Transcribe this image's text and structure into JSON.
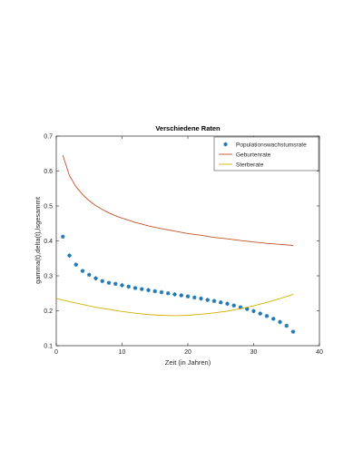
{
  "chart_data": {
    "type": "line",
    "title": "Verschiedene Raten",
    "xlabel": "Zeit (in Jahren)",
    "ylabel": "gamma(t),delta(t),lsgesammt",
    "xlim": [
      0,
      40
    ],
    "ylim": [
      0.1,
      0.7
    ],
    "xticks": [
      "0",
      "10",
      "20",
      "30",
      "40"
    ],
    "yticks": [
      "0.1",
      "0.2",
      "0.3",
      "0.4",
      "0.5",
      "0.6",
      "0.7"
    ],
    "grid": false,
    "legend_position": "top-right",
    "series": [
      {
        "name": "Populationswachstumsrate",
        "style": "markers",
        "marker": "asterisk",
        "color": "#1f77b4",
        "x": [
          1,
          2,
          3,
          4,
          5,
          6,
          7,
          8,
          9,
          10,
          11,
          12,
          13,
          14,
          15,
          16,
          17,
          18,
          19,
          20,
          21,
          22,
          23,
          24,
          25,
          26,
          27,
          28,
          29,
          30,
          31,
          32,
          33,
          34,
          35,
          36
        ],
        "y": [
          0.412,
          0.358,
          0.332,
          0.314,
          0.303,
          0.293,
          0.285,
          0.28,
          0.277,
          0.273,
          0.269,
          0.265,
          0.262,
          0.259,
          0.256,
          0.253,
          0.25,
          0.247,
          0.244,
          0.241,
          0.238,
          0.235,
          0.231,
          0.228,
          0.224,
          0.22,
          0.215,
          0.21,
          0.205,
          0.199,
          0.192,
          0.185,
          0.177,
          0.168,
          0.157,
          0.14
        ]
      },
      {
        "name": "Geburtenrate",
        "style": "line",
        "color": "#c0522a",
        "x": [
          1,
          2,
          3,
          4,
          5,
          6,
          7,
          8,
          9,
          10,
          12,
          14,
          16,
          18,
          20,
          22,
          24,
          26,
          28,
          30,
          32,
          34,
          36
        ],
        "y": [
          0.645,
          0.587,
          0.555,
          0.533,
          0.515,
          0.501,
          0.49,
          0.48,
          0.472,
          0.465,
          0.453,
          0.443,
          0.435,
          0.428,
          0.421,
          0.416,
          0.41,
          0.406,
          0.401,
          0.397,
          0.393,
          0.39,
          0.387
        ]
      },
      {
        "name": "Sterberate",
        "style": "line",
        "color": "#d4b000",
        "x": [
          0,
          2,
          4,
          6,
          8,
          10,
          12,
          14,
          16,
          18,
          20,
          22,
          24,
          26,
          28,
          30,
          32,
          34,
          36
        ],
        "y": [
          0.235,
          0.226,
          0.218,
          0.21,
          0.204,
          0.198,
          0.193,
          0.189,
          0.187,
          0.186,
          0.187,
          0.19,
          0.194,
          0.199,
          0.206,
          0.214,
          0.224,
          0.235,
          0.247
        ]
      }
    ]
  }
}
